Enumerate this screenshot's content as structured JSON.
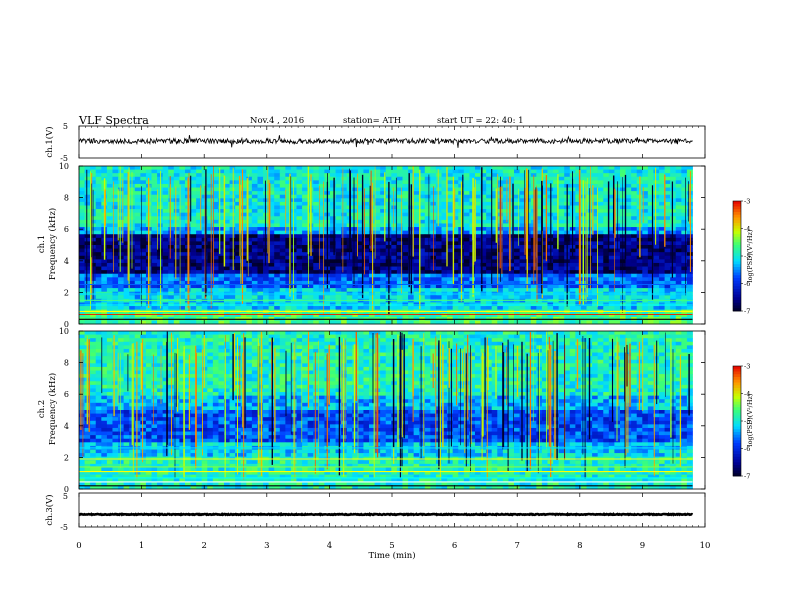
{
  "header": {
    "title": "VLF Spectra",
    "date": "Nov.4 , 2016",
    "station": "station= ATH",
    "start": "start UT = 22: 40: 1"
  },
  "chart_data": [
    {
      "type": "line",
      "ylabel": "ch.1(V)",
      "ylim": [
        -5,
        5
      ],
      "yticks": [
        "5",
        "-5"
      ],
      "baseline": 0.3,
      "xlim": [
        0,
        10
      ]
    },
    {
      "type": "heatmap",
      "ylabel_lines": [
        "ch.1",
        "Frequency (kHz)"
      ],
      "ylim": [
        0,
        10
      ],
      "yticks": [
        "0",
        "2",
        "4",
        "6",
        "8",
        "10"
      ],
      "colorbar": {
        "label": "log(PSD)(V²/Hz)",
        "min": -7,
        "max": -3,
        "ticks": [
          "-3",
          "-4",
          "-5",
          "-6",
          "-7"
        ]
      },
      "xlim": [
        0,
        10
      ]
    },
    {
      "type": "heatmap",
      "ylabel_lines": [
        "ch.2",
        "Frequency (kHz)"
      ],
      "ylim": [
        0,
        10
      ],
      "yticks": [
        "0",
        "2",
        "4",
        "6",
        "8",
        "10"
      ],
      "colorbar": {
        "label": "log(PSD)(V²/Hz)",
        "min": -7,
        "max": -3,
        "ticks": [
          "-3",
          "-4",
          "-5",
          "-6",
          "-7"
        ]
      },
      "xlim": [
        0,
        10
      ]
    },
    {
      "type": "line",
      "ylabel": "ch.3(V)",
      "ylim": [
        -5,
        5
      ],
      "yticks": [
        "5",
        "-5"
      ],
      "baseline": -1.3,
      "xlim": [
        0,
        10
      ]
    }
  ],
  "xaxis": {
    "label": "Time (min)",
    "ticks": [
      "0",
      "1",
      "2",
      "3",
      "4",
      "5",
      "6",
      "7",
      "8",
      "9",
      "10"
    ],
    "data_end": 9.8
  }
}
